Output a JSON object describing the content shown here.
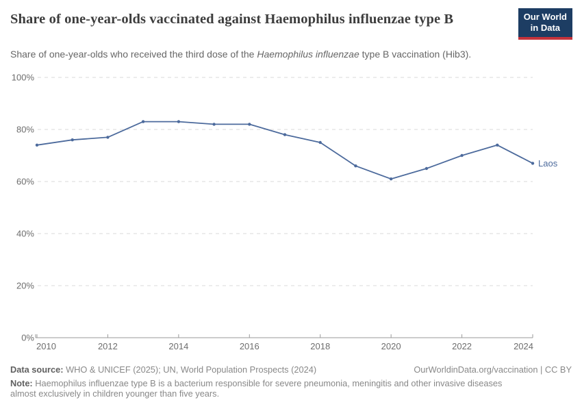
{
  "header": {
    "title": "Share of one-year-olds vaccinated against Haemophilus influenzae type B",
    "subtitle_pre": "Share of one-year-olds who received the third dose of the ",
    "subtitle_italic": "Haemophilus influenzae",
    "subtitle_post": " type B vaccination (Hib3).",
    "logo_line1": "Our World",
    "logo_line2": "in Data",
    "logo_bg": "#1d3d63",
    "logo_stripe": "#c5333b"
  },
  "chart_data": {
    "type": "line",
    "title": "Share of one-year-olds vaccinated against Haemophilus influenzae type B",
    "x": [
      2010,
      2011,
      2012,
      2013,
      2014,
      2015,
      2016,
      2017,
      2018,
      2019,
      2020,
      2021,
      2022,
      2023,
      2024
    ],
    "series": [
      {
        "name": "Laos",
        "values": [
          74,
          76,
          77,
          83,
          83,
          82,
          82,
          78,
          75,
          66,
          61,
          65,
          70,
          74,
          67
        ]
      }
    ],
    "xlabel": "",
    "ylabel": "",
    "xlim": [
      2010,
      2024
    ],
    "ylim": [
      0,
      100
    ],
    "xticks": [
      2010,
      2012,
      2014,
      2016,
      2018,
      2020,
      2022,
      2024
    ],
    "yticks": [
      0,
      20,
      40,
      60,
      80,
      100
    ],
    "ytick_suffix": "%",
    "grid": "dashed horizontal",
    "legend_position": "end-of-line label",
    "line_color": "#4c6a9c",
    "grid_color": "#d9d9d9",
    "axis_color": "#9a9a9a",
    "tick_label_color": "#6d6d6d"
  },
  "footer": {
    "source_label": "Data source:",
    "source_text": " WHO & UNICEF (2025); UN, World Population Prospects (2024)",
    "license_text": "OurWorldinData.org/vaccination | CC BY",
    "note_label": "Note:",
    "note_text": " Haemophilus influenzae type B is a bacterium responsible for severe pneumonia, meningitis and other invasive diseases almost exclusively in children younger than five years."
  }
}
